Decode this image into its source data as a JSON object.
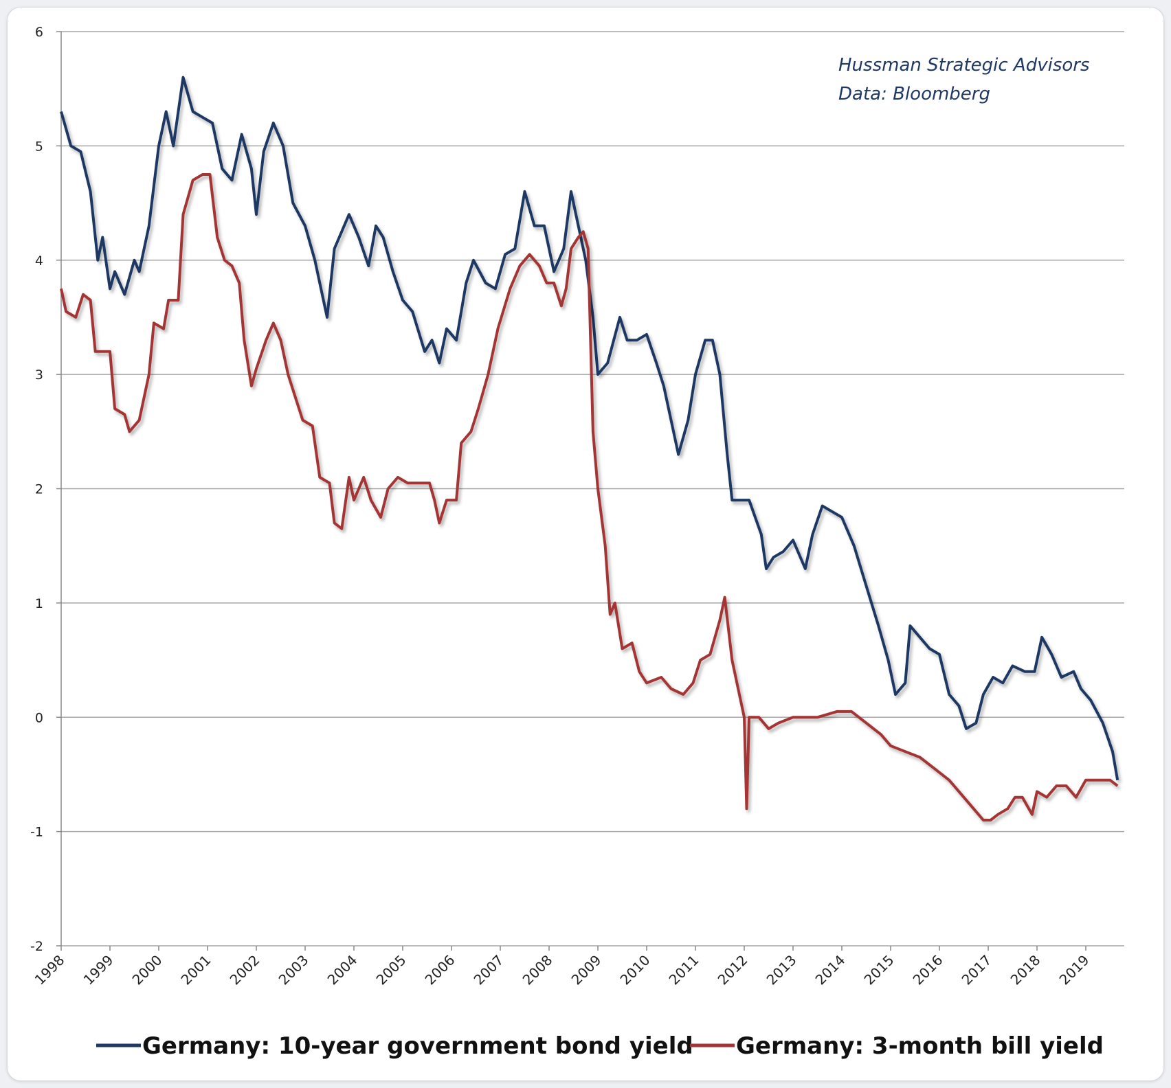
{
  "chart_data": {
    "type": "line",
    "title": "",
    "xlabel": "",
    "ylabel": "",
    "xlim": [
      1998,
      2019.7
    ],
    "ylim": [
      -2,
      6
    ],
    "yticks": [
      6,
      5,
      4,
      3,
      2,
      1,
      0,
      -1,
      -2
    ],
    "xtick_labels": [
      "1998",
      "1999",
      "2000",
      "2001",
      "2002",
      "2003",
      "2004",
      "2005",
      "2006",
      "2007",
      "2008",
      "2009",
      "2010",
      "2011",
      "2012",
      "2013",
      "2014",
      "2015",
      "2016",
      "2017",
      "2018",
      "2019"
    ],
    "grid": "horizontal",
    "legend_placement": "bottom",
    "annotations": [
      "Hussman Strategic Advisors",
      "Data: Bloomberg"
    ],
    "series": [
      {
        "name": "Germany: 10-year government bond yield",
        "color": "#1f3864",
        "points": [
          [
            1998.0,
            5.3
          ],
          [
            1998.2,
            5.0
          ],
          [
            1998.4,
            4.95
          ],
          [
            1998.6,
            4.6
          ],
          [
            1998.75,
            4.0
          ],
          [
            1998.85,
            4.2
          ],
          [
            1999.0,
            3.75
          ],
          [
            1999.1,
            3.9
          ],
          [
            1999.3,
            3.7
          ],
          [
            1999.5,
            4.0
          ],
          [
            1999.6,
            3.9
          ],
          [
            1999.8,
            4.3
          ],
          [
            2000.0,
            5.0
          ],
          [
            2000.15,
            5.3
          ],
          [
            2000.3,
            5.0
          ],
          [
            2000.5,
            5.6
          ],
          [
            2000.7,
            5.3
          ],
          [
            2000.9,
            5.25
          ],
          [
            2001.1,
            5.2
          ],
          [
            2001.3,
            4.8
          ],
          [
            2001.5,
            4.7
          ],
          [
            2001.7,
            5.1
          ],
          [
            2001.9,
            4.8
          ],
          [
            2002.0,
            4.4
          ],
          [
            2002.15,
            4.95
          ],
          [
            2002.35,
            5.2
          ],
          [
            2002.55,
            5.0
          ],
          [
            2002.75,
            4.5
          ],
          [
            2003.0,
            4.3
          ],
          [
            2003.2,
            4.0
          ],
          [
            2003.45,
            3.5
          ],
          [
            2003.6,
            4.1
          ],
          [
            2003.9,
            4.4
          ],
          [
            2004.1,
            4.2
          ],
          [
            2004.3,
            3.95
          ],
          [
            2004.45,
            4.3
          ],
          [
            2004.6,
            4.2
          ],
          [
            2004.8,
            3.9
          ],
          [
            2005.0,
            3.65
          ],
          [
            2005.2,
            3.55
          ],
          [
            2005.45,
            3.2
          ],
          [
            2005.6,
            3.3
          ],
          [
            2005.75,
            3.1
          ],
          [
            2005.9,
            3.4
          ],
          [
            2006.1,
            3.3
          ],
          [
            2006.3,
            3.8
          ],
          [
            2006.45,
            4.0
          ],
          [
            2006.7,
            3.8
          ],
          [
            2006.9,
            3.75
          ],
          [
            2007.1,
            4.05
          ],
          [
            2007.3,
            4.1
          ],
          [
            2007.5,
            4.6
          ],
          [
            2007.7,
            4.3
          ],
          [
            2007.9,
            4.3
          ],
          [
            2008.1,
            3.9
          ],
          [
            2008.3,
            4.1
          ],
          [
            2008.45,
            4.6
          ],
          [
            2008.6,
            4.3
          ],
          [
            2008.75,
            4.0
          ],
          [
            2008.9,
            3.5
          ],
          [
            2009.0,
            3.0
          ],
          [
            2009.2,
            3.1
          ],
          [
            2009.45,
            3.5
          ],
          [
            2009.6,
            3.3
          ],
          [
            2009.8,
            3.3
          ],
          [
            2010.0,
            3.35
          ],
          [
            2010.2,
            3.1
          ],
          [
            2010.35,
            2.9
          ],
          [
            2010.5,
            2.6
          ],
          [
            2010.65,
            2.3
          ],
          [
            2010.85,
            2.6
          ],
          [
            2011.0,
            3.0
          ],
          [
            2011.2,
            3.3
          ],
          [
            2011.35,
            3.3
          ],
          [
            2011.5,
            3.0
          ],
          [
            2011.65,
            2.3
          ],
          [
            2011.75,
            1.9
          ],
          [
            2011.95,
            1.9
          ],
          [
            2012.1,
            1.9
          ],
          [
            2012.35,
            1.6
          ],
          [
            2012.45,
            1.3
          ],
          [
            2012.6,
            1.4
          ],
          [
            2012.8,
            1.45
          ],
          [
            2013.0,
            1.55
          ],
          [
            2013.25,
            1.3
          ],
          [
            2013.4,
            1.6
          ],
          [
            2013.6,
            1.85
          ],
          [
            2013.8,
            1.8
          ],
          [
            2014.0,
            1.75
          ],
          [
            2014.25,
            1.5
          ],
          [
            2014.5,
            1.15
          ],
          [
            2014.75,
            0.8
          ],
          [
            2014.95,
            0.5
          ],
          [
            2015.1,
            0.2
          ],
          [
            2015.3,
            0.3
          ],
          [
            2015.4,
            0.8
          ],
          [
            2015.6,
            0.7
          ],
          [
            2015.8,
            0.6
          ],
          [
            2016.0,
            0.55
          ],
          [
            2016.2,
            0.2
          ],
          [
            2016.4,
            0.1
          ],
          [
            2016.55,
            -0.1
          ],
          [
            2016.75,
            -0.05
          ],
          [
            2016.9,
            0.2
          ],
          [
            2017.1,
            0.35
          ],
          [
            2017.3,
            0.3
          ],
          [
            2017.5,
            0.45
          ],
          [
            2017.75,
            0.4
          ],
          [
            2017.95,
            0.4
          ],
          [
            2018.1,
            0.7
          ],
          [
            2018.3,
            0.55
          ],
          [
            2018.5,
            0.35
          ],
          [
            2018.75,
            0.4
          ],
          [
            2018.9,
            0.25
          ],
          [
            2019.1,
            0.15
          ],
          [
            2019.35,
            -0.05
          ],
          [
            2019.55,
            -0.3
          ],
          [
            2019.65,
            -0.55
          ]
        ]
      },
      {
        "name": "Germany: 3-month bill yield",
        "color": "#a33434",
        "points": [
          [
            1998.0,
            3.75
          ],
          [
            1998.1,
            3.55
          ],
          [
            1998.3,
            3.5
          ],
          [
            1998.45,
            3.7
          ],
          [
            1998.6,
            3.65
          ],
          [
            1998.7,
            3.2
          ],
          [
            1999.0,
            3.2
          ],
          [
            1999.1,
            2.7
          ],
          [
            1999.3,
            2.65
          ],
          [
            1999.4,
            2.5
          ],
          [
            1999.6,
            2.6
          ],
          [
            1999.8,
            3.0
          ],
          [
            1999.9,
            3.45
          ],
          [
            2000.1,
            3.4
          ],
          [
            2000.2,
            3.65
          ],
          [
            2000.4,
            3.65
          ],
          [
            2000.5,
            4.4
          ],
          [
            2000.7,
            4.7
          ],
          [
            2000.9,
            4.75
          ],
          [
            2001.05,
            4.75
          ],
          [
            2001.2,
            4.2
          ],
          [
            2001.35,
            4.0
          ],
          [
            2001.5,
            3.95
          ],
          [
            2001.65,
            3.8
          ],
          [
            2001.75,
            3.3
          ],
          [
            2001.9,
            2.9
          ],
          [
            2002.0,
            3.05
          ],
          [
            2002.2,
            3.3
          ],
          [
            2002.35,
            3.45
          ],
          [
            2002.5,
            3.3
          ],
          [
            2002.65,
            3.0
          ],
          [
            2002.8,
            2.8
          ],
          [
            2002.95,
            2.6
          ],
          [
            2003.15,
            2.55
          ],
          [
            2003.3,
            2.1
          ],
          [
            2003.5,
            2.05
          ],
          [
            2003.6,
            1.7
          ],
          [
            2003.75,
            1.65
          ],
          [
            2003.9,
            2.1
          ],
          [
            2004.0,
            1.9
          ],
          [
            2004.2,
            2.1
          ],
          [
            2004.35,
            1.9
          ],
          [
            2004.55,
            1.75
          ],
          [
            2004.7,
            2.0
          ],
          [
            2004.9,
            2.1
          ],
          [
            2005.1,
            2.05
          ],
          [
            2005.3,
            2.05
          ],
          [
            2005.55,
            2.05
          ],
          [
            2005.65,
            1.9
          ],
          [
            2005.75,
            1.7
          ],
          [
            2005.9,
            1.9
          ],
          [
            2006.1,
            1.9
          ],
          [
            2006.2,
            2.4
          ],
          [
            2006.4,
            2.5
          ],
          [
            2006.55,
            2.7
          ],
          [
            2006.75,
            3.0
          ],
          [
            2006.95,
            3.4
          ],
          [
            2007.2,
            3.75
          ],
          [
            2007.4,
            3.95
          ],
          [
            2007.6,
            4.05
          ],
          [
            2007.8,
            3.95
          ],
          [
            2007.95,
            3.8
          ],
          [
            2008.1,
            3.8
          ],
          [
            2008.25,
            3.6
          ],
          [
            2008.35,
            3.75
          ],
          [
            2008.45,
            4.1
          ],
          [
            2008.6,
            4.2
          ],
          [
            2008.7,
            4.25
          ],
          [
            2008.8,
            4.1
          ],
          [
            2008.9,
            2.5
          ],
          [
            2009.0,
            2.0
          ],
          [
            2009.15,
            1.5
          ],
          [
            2009.25,
            0.9
          ],
          [
            2009.35,
            1.0
          ],
          [
            2009.5,
            0.6
          ],
          [
            2009.7,
            0.65
          ],
          [
            2009.85,
            0.4
          ],
          [
            2010.0,
            0.3
          ],
          [
            2010.3,
            0.35
          ],
          [
            2010.5,
            0.25
          ],
          [
            2010.75,
            0.2
          ],
          [
            2010.95,
            0.3
          ],
          [
            2011.1,
            0.5
          ],
          [
            2011.3,
            0.55
          ],
          [
            2011.5,
            0.85
          ],
          [
            2011.6,
            1.05
          ],
          [
            2011.75,
            0.5
          ],
          [
            2011.9,
            0.2
          ],
          [
            2012.0,
            0.0
          ],
          [
            2012.05,
            -0.8
          ],
          [
            2012.1,
            0.0
          ],
          [
            2012.3,
            0.0
          ],
          [
            2012.5,
            -0.1
          ],
          [
            2012.7,
            -0.05
          ],
          [
            2013.0,
            0.0
          ],
          [
            2013.5,
            0.0
          ],
          [
            2013.9,
            0.05
          ],
          [
            2014.2,
            0.05
          ],
          [
            2014.5,
            -0.05
          ],
          [
            2014.8,
            -0.15
          ],
          [
            2015.0,
            -0.25
          ],
          [
            2015.3,
            -0.3
          ],
          [
            2015.6,
            -0.35
          ],
          [
            2015.9,
            -0.45
          ],
          [
            2016.2,
            -0.55
          ],
          [
            2016.5,
            -0.7
          ],
          [
            2016.7,
            -0.8
          ],
          [
            2016.9,
            -0.9
          ],
          [
            2017.05,
            -0.9
          ],
          [
            2017.2,
            -0.85
          ],
          [
            2017.4,
            -0.8
          ],
          [
            2017.55,
            -0.7
          ],
          [
            2017.7,
            -0.7
          ],
          [
            2017.9,
            -0.85
          ],
          [
            2018.0,
            -0.65
          ],
          [
            2018.2,
            -0.7
          ],
          [
            2018.4,
            -0.6
          ],
          [
            2018.6,
            -0.6
          ],
          [
            2018.8,
            -0.7
          ],
          [
            2019.0,
            -0.55
          ],
          [
            2019.2,
            -0.55
          ],
          [
            2019.5,
            -0.55
          ],
          [
            2019.65,
            -0.6
          ]
        ]
      }
    ]
  }
}
